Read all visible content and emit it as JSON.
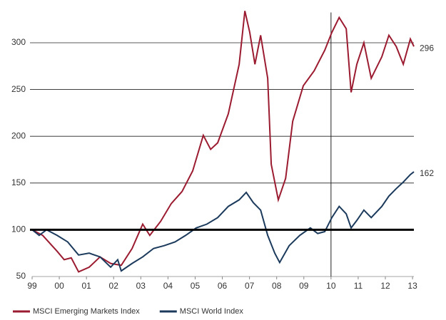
{
  "chart_data": {
    "type": "line",
    "series": [
      {
        "name": "MSCI Emerging Markets Index",
        "color": "#9b1b30",
        "x": [
          1999.0,
          1999.39,
          1999.92,
          2000.18,
          2000.44,
          2000.71,
          2001.1,
          2001.5,
          2001.89,
          2002.28,
          2002.68,
          2003.07,
          2003.33,
          2003.73,
          2004.12,
          2004.52,
          2004.91,
          2005.3,
          2005.57,
          2005.83,
          2006.22,
          2006.62,
          2006.83,
          2007.01,
          2007.2,
          2007.41,
          2007.67,
          2007.8,
          2008.06,
          2008.33,
          2008.59,
          2008.98,
          2009.38,
          2009.77,
          2010.03,
          2010.3,
          2010.56,
          2010.74,
          2010.95,
          2011.21,
          2011.48,
          2011.87,
          2012.13,
          2012.4,
          2012.66,
          2012.92,
          2013.05
        ],
        "values": [
          100,
          94,
          77,
          68,
          70,
          55,
          60,
          71,
          64,
          62,
          80,
          106,
          94,
          109,
          128,
          141,
          163,
          201,
          186,
          193,
          224,
          277,
          334,
          311,
          277,
          308,
          262,
          170,
          132,
          155,
          216,
          254,
          270,
          292,
          311,
          327,
          315,
          247,
          277,
          300,
          262,
          285,
          308,
          296,
          277,
          304,
          296
        ]
      },
      {
        "name": "MSCI World Index",
        "color": "#1b3a5c",
        "x": [
          1999.0,
          1999.26,
          1999.53,
          1999.92,
          2000.31,
          2000.71,
          2001.1,
          2001.5,
          2001.89,
          2002.15,
          2002.28,
          2002.68,
          2003.07,
          2003.47,
          2003.86,
          2004.26,
          2004.65,
          2005.04,
          2005.43,
          2005.83,
          2006.22,
          2006.62,
          2006.88,
          2007.14,
          2007.41,
          2007.67,
          2007.93,
          2008.11,
          2008.46,
          2008.85,
          2009.24,
          2009.51,
          2009.77,
          2010.03,
          2010.3,
          2010.56,
          2010.74,
          2010.95,
          2011.21,
          2011.48,
          2011.87,
          2012.13,
          2012.4,
          2012.66,
          2012.92,
          2013.05
        ],
        "values": [
          100,
          94,
          100,
          94,
          87,
          73,
          75,
          71,
          60,
          68,
          56,
          64,
          71,
          80,
          83,
          87,
          94,
          102,
          106,
          113,
          125,
          132,
          140,
          129,
          121,
          94,
          75,
          65,
          83,
          94,
          102,
          96,
          98,
          113,
          125,
          117,
          102,
          110,
          121,
          113,
          125,
          136,
          144,
          151,
          159,
          162
        ]
      }
    ],
    "xlim": [
      1999,
      2013.05
    ],
    "xticks": [
      {
        "value": 1999,
        "label": "99"
      },
      {
        "value": 2000,
        "label": "00"
      },
      {
        "value": 2001,
        "label": "01"
      },
      {
        "value": 2002,
        "label": "02"
      },
      {
        "value": 2003,
        "label": "03"
      },
      {
        "value": 2004,
        "label": "04"
      },
      {
        "value": 2005,
        "label": "05"
      },
      {
        "value": 2006,
        "label": "06"
      },
      {
        "value": 2007,
        "label": "07"
      },
      {
        "value": 2008,
        "label": "08"
      },
      {
        "value": 2009,
        "label": "09"
      },
      {
        "value": 2010,
        "label": "10"
      },
      {
        "value": 2011,
        "label": "11"
      },
      {
        "value": 2012,
        "label": "12"
      },
      {
        "value": 2013,
        "label": "13"
      }
    ],
    "ylim": [
      50,
      340
    ],
    "yticks": [
      50,
      100,
      150,
      200,
      250,
      300
    ],
    "grid": true,
    "reference_lines": {
      "x": 2010,
      "y": 100
    },
    "legend": "bottom"
  }
}
